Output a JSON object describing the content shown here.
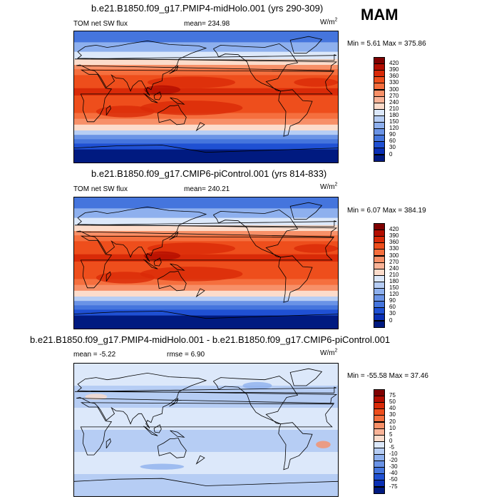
{
  "season": "MAM",
  "panels": [
    {
      "title": "b.e21.B1850.f09_g17.PMIP4-midHolo.001 (yrs 290-309)",
      "left_label": "TOM net SW flux",
      "stat_label": "mean= 234.98",
      "units": "W/m",
      "units_sup": "2",
      "minmax": "Min =   5.61 Max = 375.86",
      "levels": [
        "420",
        "390",
        "360",
        "330",
        "300",
        "270",
        "240",
        "210",
        "180",
        "150",
        "120",
        "90",
        "60",
        "30",
        "0"
      ],
      "colors": [
        "#7f0000",
        "#b30d00",
        "#d92a08",
        "#ee4e1c",
        "#f56f3e",
        "#f79068",
        "#f9b397",
        "#fcdccb",
        "#dce8fa",
        "#b6cdf4",
        "#8eb0ee",
        "#6a93e6",
        "#4575dd",
        "#1f50d3",
        "#0a2fb4",
        "#001a80"
      ],
      "kind": "abs",
      "chart_data": {
        "type": "heatmap",
        "title": "b.e21.B1850.f09_g17.PMIP4-midHolo.001 (yrs 290-309)",
        "variable": "TOM net SW flux",
        "units": "W/m2",
        "mean": 234.98,
        "min": 5.61,
        "max": 375.86,
        "contour_levels": [
          0,
          30,
          60,
          90,
          120,
          150,
          180,
          210,
          240,
          270,
          300,
          330,
          360,
          390,
          420
        ]
      }
    },
    {
      "title": "b.e21.B1850.f09_g17.CMIP6-piControl.001 (yrs 814-833)",
      "left_label": "TOM net SW flux",
      "stat_label": "mean= 240.21",
      "units": "W/m",
      "units_sup": "2",
      "minmax": "Min =   6.07 Max = 384.19",
      "levels": [
        "420",
        "390",
        "360",
        "330",
        "300",
        "270",
        "240",
        "210",
        "180",
        "150",
        "120",
        "90",
        "60",
        "30",
        "0"
      ],
      "colors": [
        "#7f0000",
        "#b30d00",
        "#d92a08",
        "#ee4e1c",
        "#f56f3e",
        "#f79068",
        "#f9b397",
        "#fcdccb",
        "#dce8fa",
        "#b6cdf4",
        "#8eb0ee",
        "#6a93e6",
        "#4575dd",
        "#1f50d3",
        "#0a2fb4",
        "#001a80"
      ],
      "kind": "abs",
      "chart_data": {
        "type": "heatmap",
        "title": "b.e21.B1850.f09_g17.CMIP6-piControl.001 (yrs 814-833)",
        "variable": "TOM net SW flux",
        "units": "W/m2",
        "mean": 240.21,
        "min": 6.07,
        "max": 384.19,
        "contour_levels": [
          0,
          30,
          60,
          90,
          120,
          150,
          180,
          210,
          240,
          270,
          300,
          330,
          360,
          390,
          420
        ]
      }
    },
    {
      "title": "b.e21.B1850.f09_g17.PMIP4-midHolo.001 - b.e21.B1850.f09_g17.CMIP6-piControl.001",
      "left_label": "mean =  -5.22",
      "stat_label": "rmse =   6.90",
      "units": "W/m",
      "units_sup": "2",
      "minmax": "Min = -55.58 Max =  37.46",
      "levels": [
        "75",
        "50",
        "40",
        "30",
        "20",
        "10",
        "5",
        "0",
        "-5",
        "-10",
        "-20",
        "-30",
        "-40",
        "-50",
        "-75"
      ],
      "colors": [
        "#7f0000",
        "#b30d00",
        "#d92a08",
        "#ee4e1c",
        "#f56f3e",
        "#f79068",
        "#f9b397",
        "#fcdccb",
        "#dce8fa",
        "#b6cdf4",
        "#8eb0ee",
        "#6a93e6",
        "#4575dd",
        "#1f50d3",
        "#0a2fb4",
        "#001a80"
      ],
      "kind": "diff",
      "chart_data": {
        "type": "heatmap",
        "title": "b.e21.B1850.f09_g17.PMIP4-midHolo.001 - b.e21.B1850.f09_g17.CMIP6-piControl.001",
        "units": "W/m2",
        "mean": -5.22,
        "rmse": 6.9,
        "min": -55.58,
        "max": 37.46,
        "contour_levels": [
          -75,
          -50,
          -40,
          -30,
          -20,
          -10,
          -5,
          0,
          5,
          10,
          20,
          30,
          40,
          50,
          75
        ]
      }
    }
  ],
  "chart_data": [
    {
      "type": "heatmap",
      "title": "b.e21.B1850.f09_g17.PMIP4-midHolo.001 (yrs 290-309)",
      "variable": "TOM net SW flux",
      "units": "W/m2",
      "mean": 234.98,
      "min": 5.61,
      "max": 375.86,
      "contour_levels": [
        0,
        30,
        60,
        90,
        120,
        150,
        180,
        210,
        240,
        270,
        300,
        330,
        360,
        390,
        420
      ]
    },
    {
      "type": "heatmap",
      "title": "b.e21.B1850.f09_g17.CMIP6-piControl.001 (yrs 814-833)",
      "variable": "TOM net SW flux",
      "units": "W/m2",
      "mean": 240.21,
      "min": 6.07,
      "max": 384.19,
      "contour_levels": [
        0,
        30,
        60,
        90,
        120,
        150,
        180,
        210,
        240,
        270,
        300,
        330,
        360,
        390,
        420
      ]
    },
    {
      "type": "heatmap",
      "title": "b.e21.B1850.f09_g17.PMIP4-midHolo.001 - b.e21.B1850.f09_g17.CMIP6-piControl.001",
      "units": "W/m2",
      "mean": -5.22,
      "rmse": 6.9,
      "min": -55.58,
      "max": 37.46,
      "contour_levels": [
        -75,
        -50,
        -40,
        -30,
        -20,
        -10,
        -5,
        0,
        5,
        10,
        20,
        30,
        40,
        50,
        75
      ]
    }
  ]
}
